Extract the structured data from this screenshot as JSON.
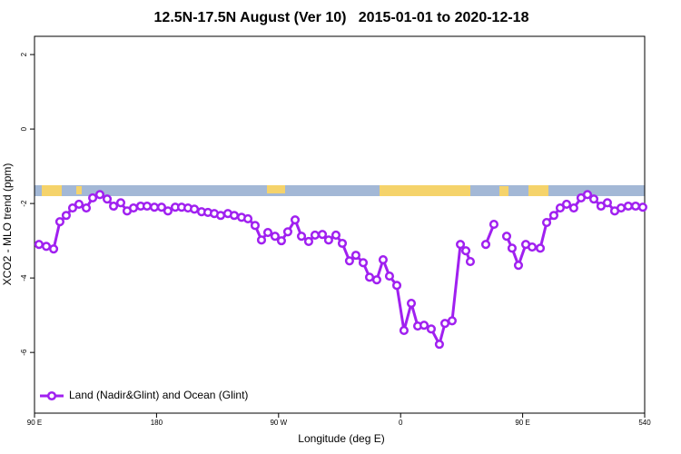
{
  "chart_data": {
    "type": "line",
    "title": "12.5N-17.5N August (Ver 10)   2015-01-01 to 2020-12-18",
    "x_label": "Longitude (deg E)",
    "y_label": "XCO2 - MLO trend (ppm)",
    "xlim": [
      90,
      540
    ],
    "ylim": [
      -7.63,
      2.49
    ],
    "xticks": [
      {
        "value": 90,
        "label": "90 E"
      },
      180,
      {
        "value": 270,
        "label": "90 W"
      },
      {
        "value": 360,
        "label": "0"
      },
      {
        "value": 450,
        "label": "90 E"
      },
      540
    ],
    "yticks": [
      2,
      0,
      -2,
      -4,
      -6
    ],
    "grid": false,
    "legend": "bottom-left",
    "x": [
      93.3,
      98.7,
      104.1,
      108.7,
      113.4,
      118.1,
      122.8,
      128.2,
      132.9,
      138.2,
      143.6,
      148.3,
      153.6,
      158.3,
      163.0,
      168.3,
      173.0,
      178.4,
      183.7,
      188.4,
      193.8,
      198.5,
      203.2,
      207.9,
      213.2,
      217.9,
      222.6,
      227.3,
      232.6,
      237.3,
      242.7,
      247.4,
      252.7,
      257.4,
      262.1,
      267.4,
      272.1,
      276.8,
      282.2,
      286.9,
      292.2,
      296.9,
      302.3,
      306.9,
      312.3,
      317.0,
      322.3,
      327.0,
      332.4,
      337.1,
      342.4,
      347.1,
      351.8,
      357.2,
      362.5,
      367.9,
      372.6,
      377.3,
      382.6,
      388.6,
      392.7,
      398.0,
      404.1,
      408.1,
      411.4,
      417.0,
      422.8,
      428.8,
      433.5,
      438.2,
      442.2,
      446.9,
      452.3,
      457.0,
      463.0,
      467.7,
      473.0,
      477.7,
      482.4,
      487.7,
      493.1,
      497.8,
      502.5,
      507.8,
      512.5,
      517.9,
      522.6,
      527.9,
      533.3,
      538.6
    ],
    "series": [
      {
        "name": "Land (Nadir&Glint) and Ocean (Glint)",
        "color": "#a020f0",
        "values": [
          -3.1,
          -3.15,
          -3.22,
          -2.49,
          -2.32,
          -2.12,
          -2.02,
          -2.12,
          -1.85,
          -1.76,
          -1.88,
          -2.07,
          -1.98,
          -2.2,
          -2.12,
          -2.07,
          -2.07,
          -2.1,
          -2.1,
          -2.2,
          -2.1,
          -2.1,
          -2.12,
          -2.15,
          -2.22,
          -2.24,
          -2.27,
          -2.32,
          -2.27,
          -2.32,
          -2.37,
          -2.41,
          -2.59,
          -2.98,
          -2.78,
          -2.88,
          -3.0,
          -2.76,
          -2.44,
          -2.88,
          -3.02,
          -2.85,
          -2.83,
          -2.98,
          -2.85,
          -3.07,
          -3.54,
          -3.39,
          -3.59,
          -3.98,
          -4.05,
          -3.51,
          -3.95,
          -4.2,
          -5.41,
          -4.68,
          -5.29,
          -5.27,
          -5.37,
          -5.78,
          -5.22,
          -5.15,
          -3.1,
          -3.27,
          -3.56,
          null,
          -3.1,
          -2.56,
          null,
          -2.88,
          -3.2,
          -3.66,
          -3.1,
          -3.17,
          -3.2,
          -2.51,
          -2.32,
          -2.12,
          -2.02,
          -2.12,
          -1.85,
          -1.76,
          -1.88,
          -2.07,
          -1.98,
          -2.2,
          -2.12,
          -2.07,
          -2.07,
          -2.1
        ]
      }
    ]
  }
}
